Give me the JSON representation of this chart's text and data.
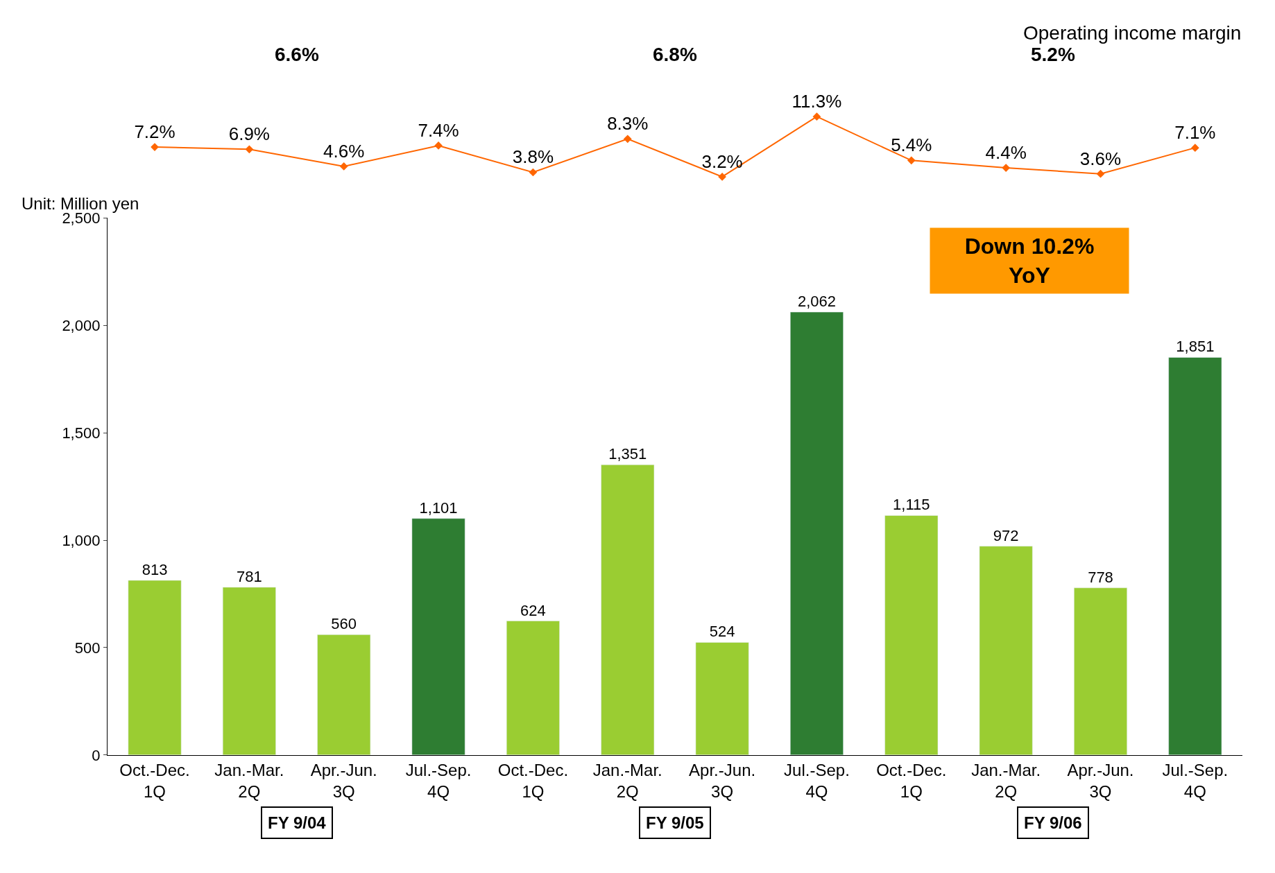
{
  "chart_data": [
    {
      "type": "line",
      "title": "Operating income margin",
      "categories": [
        null,
        null,
        null,
        null,
        null,
        null,
        null,
        null,
        null,
        null,
        null,
        null
      ],
      "series": [
        {
          "color": "#ff6600",
          "values": [
            7.2,
            6.9,
            4.6,
            7.4,
            3.8,
            8.3,
            3.2,
            11.3,
            5.4,
            4.4,
            3.6,
            7.1
          ],
          "value_labels": [
            "7.2%",
            "6.9%",
            "4.6%",
            "7.4%",
            "3.8%",
            "8.3%",
            "3.2%",
            "11.3%",
            "5.4%",
            "4.4%",
            "3.6%",
            "7.1%"
          ]
        }
      ],
      "tick_labels": false,
      "marker": "diamond",
      "line_style": "solid",
      "annotations": [
        "6.6%",
        "6.8%",
        "5.2%"
      ]
    },
    {
      "type": "bar",
      "categories": [
        "Oct.-Dec.\n1Q",
        "Jan.-Mar.\n2Q",
        "Apr.-Jun.\n3Q",
        "Jul.-Sep.\n4Q",
        "Oct.-Dec.\n1Q",
        "Jan.-Mar.\n2Q",
        "Apr.-Jun.\n3Q",
        "Jul.-Sep.\n4Q",
        "Oct.-Dec.\n1Q",
        "Jan.-Mar.\n2Q",
        "Apr.-Jun.\n3Q",
        "Jul.-Sep.\n4Q"
      ],
      "values": [
        813,
        781,
        560,
        1101,
        624,
        1351,
        524,
        2062,
        1115,
        972,
        778,
        1851
      ],
      "colors": [
        "#9acd32",
        "#9acd32",
        "#9acd32",
        "#2e7d32",
        "#9acd32",
        "#9acd32",
        "#9acd32",
        "#2e7d32",
        "#9acd32",
        "#9acd32",
        "#9acd32",
        "#2e7d32"
      ],
      "value_labels": [
        "813",
        "781",
        "560",
        "1,101",
        "624",
        "1,351",
        "524",
        "2,062",
        "1,115",
        "972",
        "778",
        "1,851"
      ],
      "ylim": [
        0,
        2500
      ],
      "yticks": [
        0,
        500,
        {
          "value": 1000,
          "label": "1,000"
        },
        {
          "value": 1500,
          "label": "1,500"
        },
        {
          "value": 2000,
          "label": "2,000"
        },
        {
          "value": 2500,
          "label": "2,500"
        }
      ],
      "annotations": [
        "Unit: Million yen",
        "Down 10.2%\nYoY",
        "FY 9/04",
        "FY 9/05",
        "FY 9/06"
      ]
    }
  ]
}
